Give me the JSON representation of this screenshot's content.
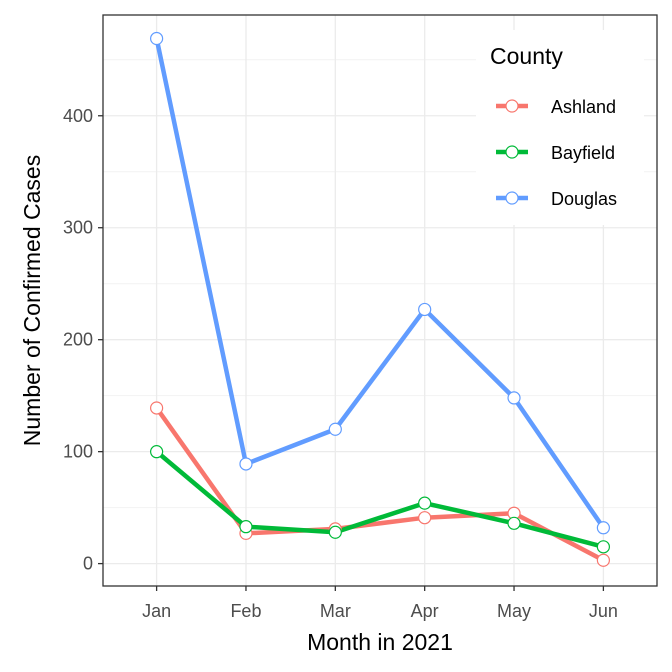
{
  "chart_data": {
    "type": "line",
    "title": "",
    "xlabel": "Month in 2021",
    "ylabel": "Number of Confirmed Cases",
    "categories": [
      "Jan",
      "Feb",
      "Mar",
      "Apr",
      "May",
      "Jun"
    ],
    "y_ticks": [
      0,
      100,
      200,
      300,
      400
    ],
    "ylim": [
      -20,
      490
    ],
    "grid": true,
    "legend": {
      "title": "County",
      "position": "top-right"
    },
    "series": [
      {
        "name": "Ashland",
        "color": "#F8766D",
        "values": [
          139,
          27,
          31,
          41,
          45,
          3
        ]
      },
      {
        "name": "Bayfield",
        "color": "#00BA38",
        "values": [
          100,
          33,
          28,
          54,
          36,
          15
        ]
      },
      {
        "name": "Douglas",
        "color": "#619CFF",
        "values": [
          469,
          89,
          120,
          227,
          148,
          32
        ]
      }
    ]
  }
}
